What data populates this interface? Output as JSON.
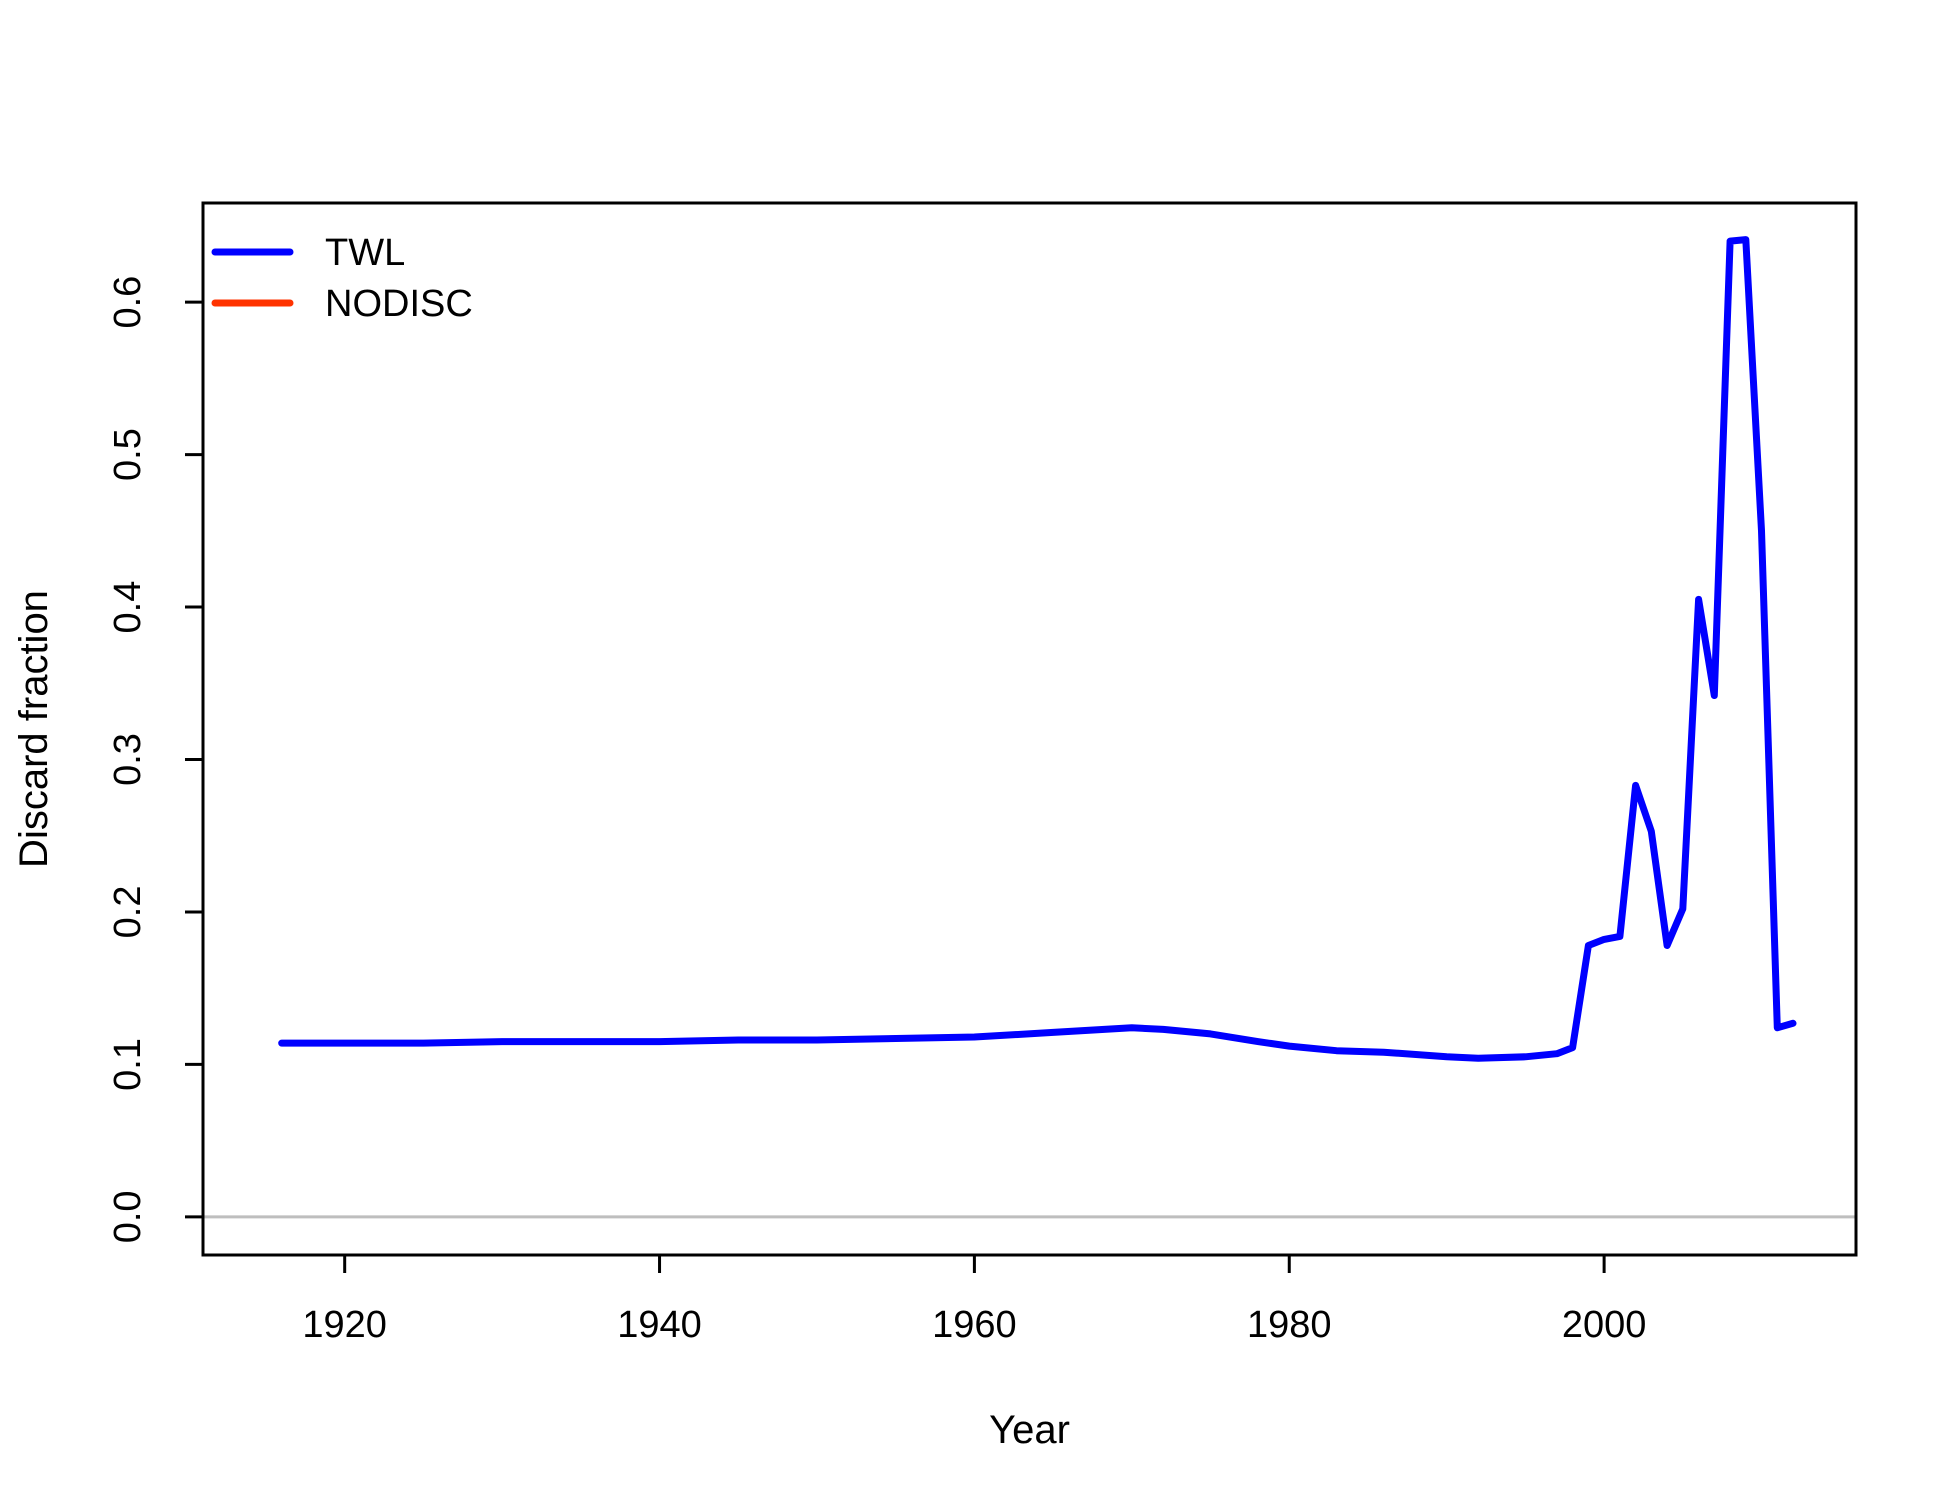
{
  "chart_data": {
    "type": "line",
    "title": "",
    "xlabel": "Year",
    "ylabel": "Discard fraction",
    "xlim": [
      1911,
      2016
    ],
    "ylim": [
      -0.025,
      0.665
    ],
    "x_ticks": [
      "1920",
      "1940",
      "1960",
      "1980",
      "2000"
    ],
    "x_tick_values": [
      1920,
      1940,
      1960,
      1980,
      2000
    ],
    "y_ticks": [
      "0.0",
      "0.1",
      "0.2",
      "0.3",
      "0.4",
      "0.5",
      "0.6"
    ],
    "y_tick_values": [
      0,
      0.1,
      0.2,
      0.3,
      0.4,
      0.5,
      0.6
    ],
    "grid": false,
    "reference_line": {
      "y": 0,
      "color": "#bebebe"
    },
    "legend": {
      "position": "top-left",
      "entries": [
        "TWL",
        "NODISC"
      ]
    },
    "series": [
      {
        "name": "TWL",
        "color": "#0000ff",
        "x": [
          1916,
          1920,
          1925,
          1930,
          1935,
          1940,
          1945,
          1950,
          1955,
          1960,
          1965,
          1970,
          1972,
          1975,
          1978,
          1980,
          1983,
          1986,
          1990,
          1992,
          1995,
          1997,
          1998,
          1999,
          2000,
          2001,
          2002,
          2003,
          2004,
          2005,
          2006,
          2007,
          2008,
          2009,
          2010,
          2011,
          2012
        ],
        "y": [
          0.114,
          0.114,
          0.114,
          0.115,
          0.115,
          0.115,
          0.116,
          0.116,
          0.117,
          0.118,
          0.121,
          0.124,
          0.123,
          0.12,
          0.115,
          0.112,
          0.109,
          0.108,
          0.105,
          0.104,
          0.105,
          0.107,
          0.111,
          0.178,
          0.182,
          0.184,
          0.283,
          0.253,
          0.178,
          0.202,
          0.405,
          0.342,
          0.64,
          0.641,
          0.45,
          0.124,
          0.127
        ]
      },
      {
        "name": "NODISC",
        "color": "#ff3300",
        "x": [],
        "y": []
      }
    ]
  }
}
